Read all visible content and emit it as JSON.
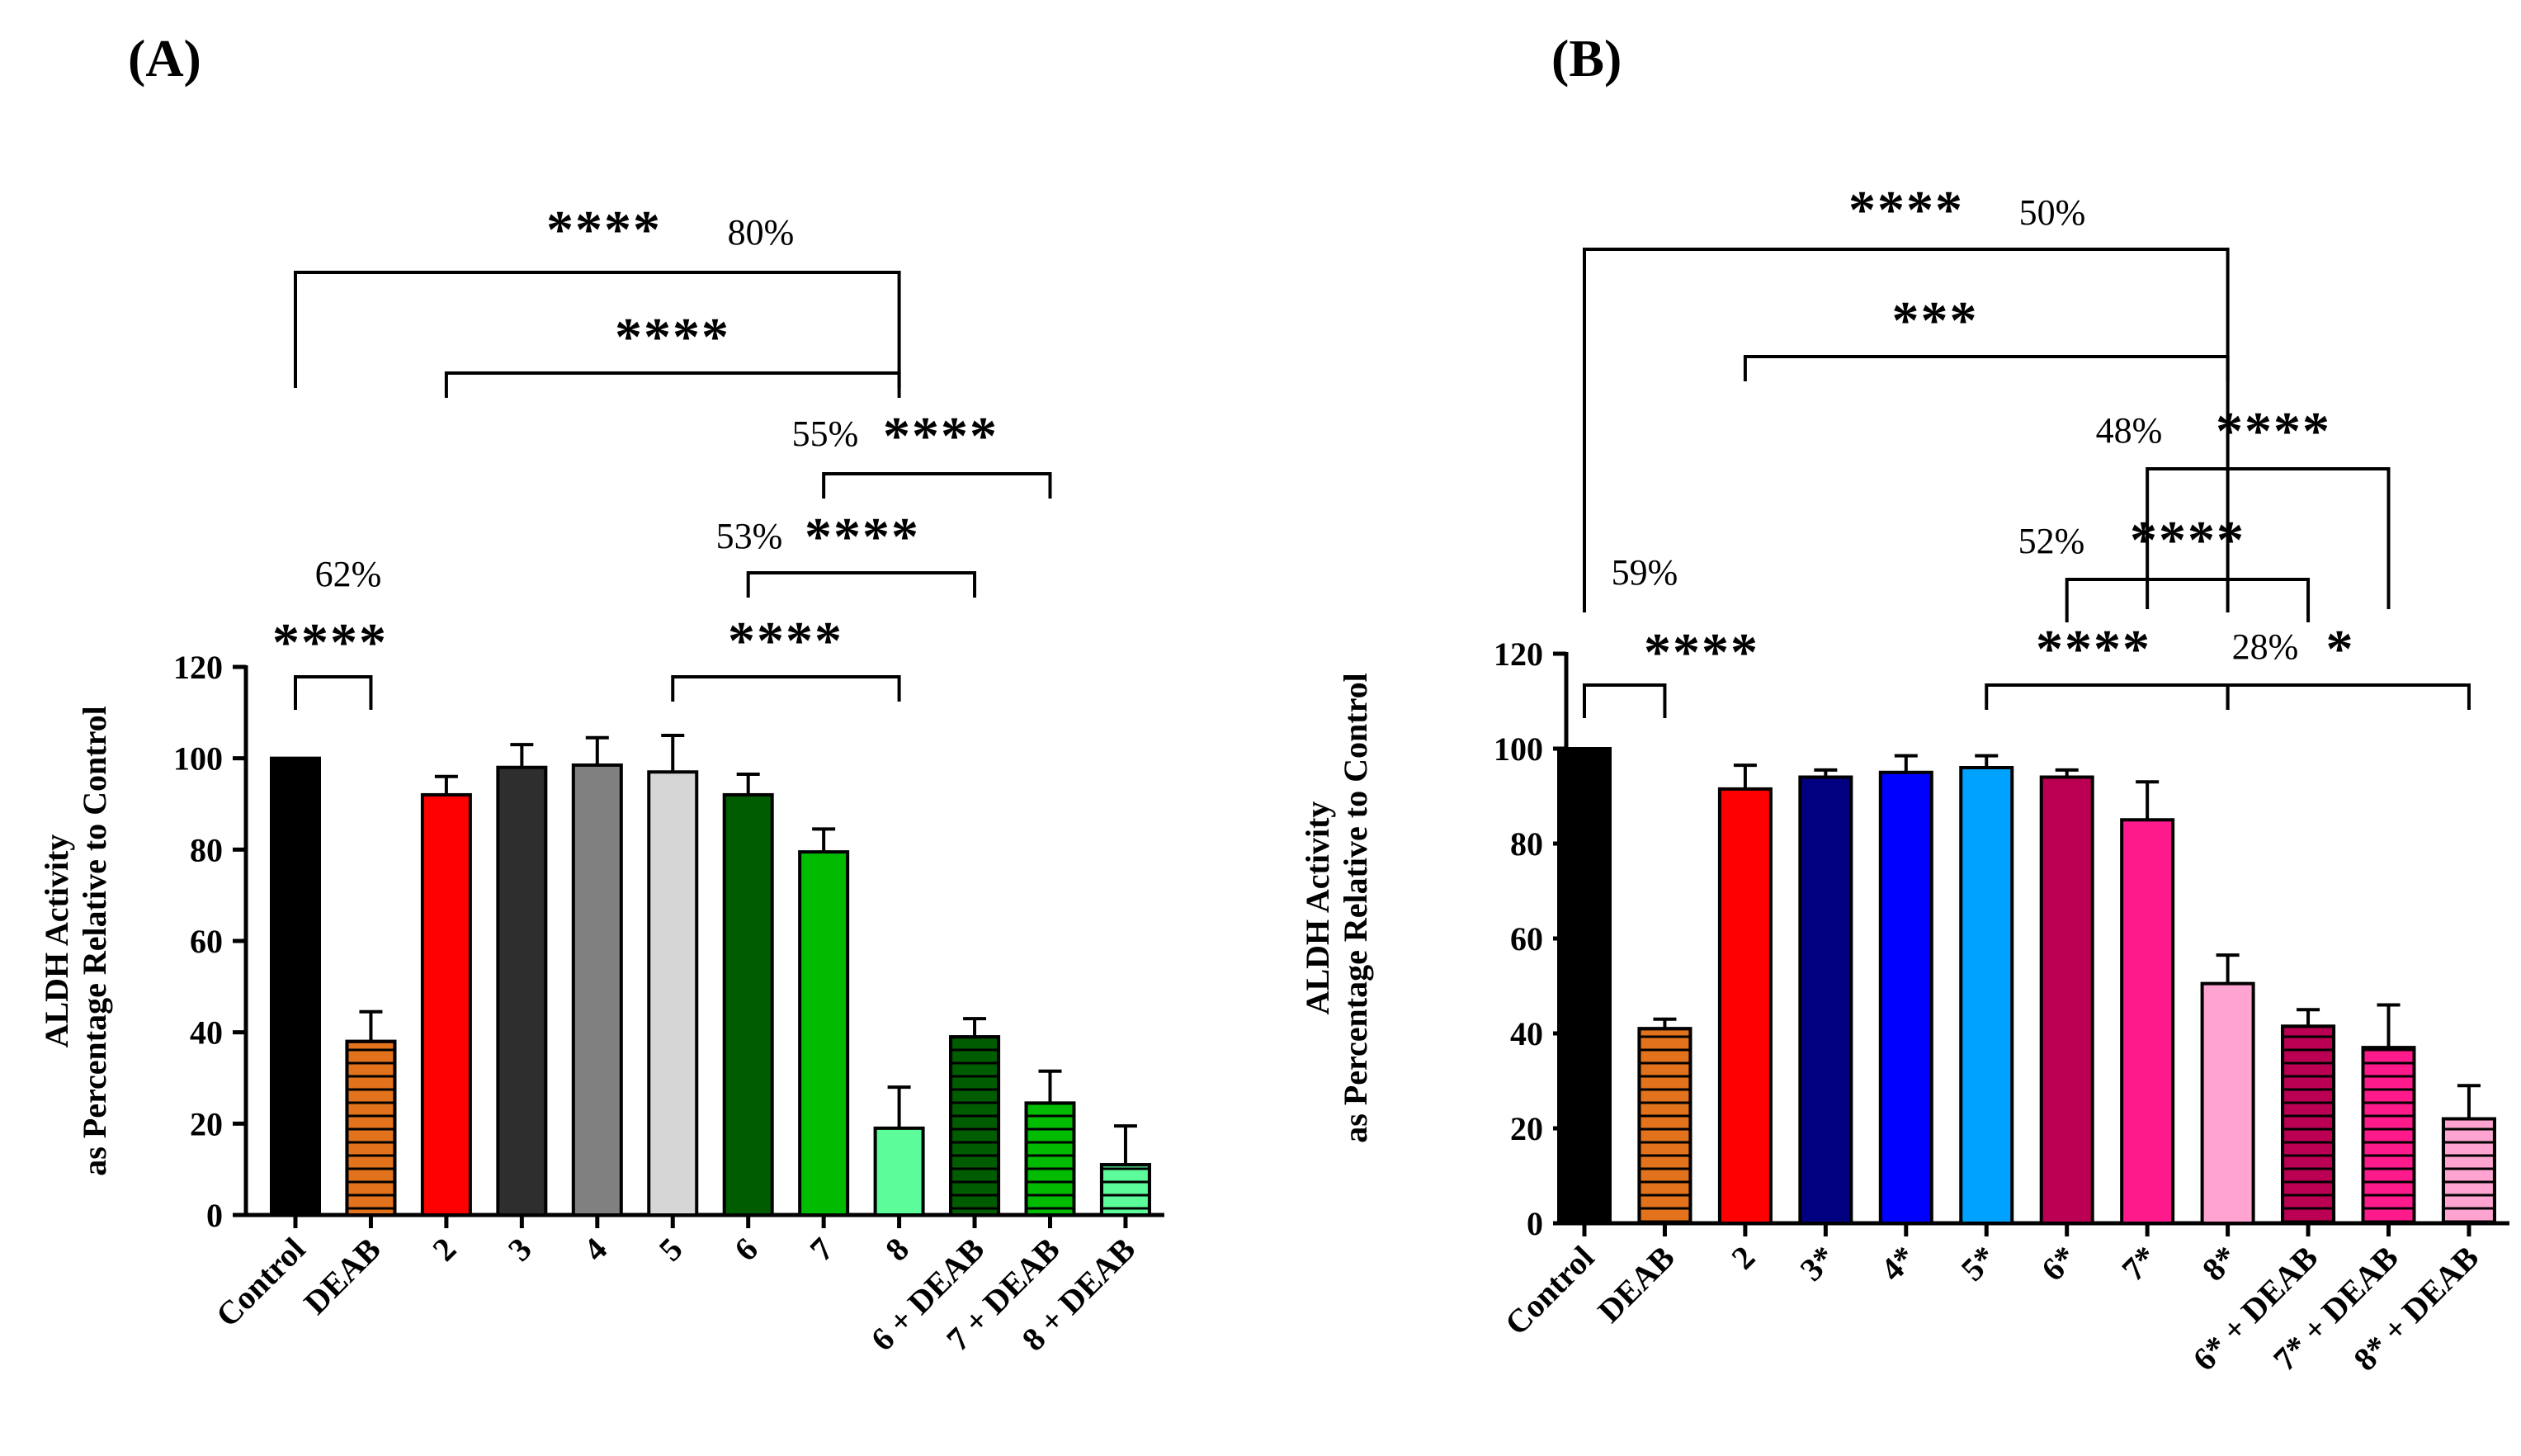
{
  "figure": {
    "panel_a_label": "(A)",
    "panel_b_label": "(B)"
  },
  "chart_data": [
    {
      "type": "bar",
      "panel": "(A)",
      "title": "",
      "xlabel": "",
      "ylabel_line1": "ALDH Activity",
      "ylabel_line2": "as Percentage Relative to Control",
      "ylim": [
        0,
        120
      ],
      "yticks": [
        "0",
        "20",
        "40",
        "60",
        "80",
        "100",
        "120"
      ],
      "categories": [
        "Control",
        "DEAB",
        "2",
        "3",
        "4",
        "5",
        "6",
        "7",
        "8",
        "6 + DEAB",
        "7 + DEAB",
        "8 + DEAB"
      ],
      "values": [
        100,
        38,
        92,
        98,
        98.5,
        97,
        92,
        79.5,
        19,
        39,
        24.5,
        11
      ],
      "errors": [
        0,
        6.5,
        4,
        5,
        6,
        8,
        4.5,
        5,
        9,
        4,
        7,
        8.5
      ],
      "colors": [
        "#000000",
        "#e2721b",
        "#ff0000",
        "#2e2e2e",
        "#808080",
        "#d6d6d6",
        "#005c00",
        "#00bb00",
        "#5cfc9a",
        "#005c00",
        "#00bb00",
        "#5cfc9a"
      ],
      "hatched": [
        false,
        true,
        false,
        false,
        false,
        false,
        false,
        false,
        false,
        true,
        true,
        true
      ],
      "comparisons": [
        {
          "from": "Control",
          "to": "8",
          "stars": "****",
          "percent": "80%"
        },
        {
          "from": "2",
          "to": "8",
          "stars": "****",
          "percent": ""
        },
        {
          "from": "7",
          "to": "7 + DEAB",
          "stars": "****",
          "percent": "55%"
        },
        {
          "from": "6",
          "to": "6 + DEAB",
          "stars": "****",
          "percent": "53%"
        },
        {
          "from": "5",
          "to": "8",
          "stars": "****",
          "percent": ""
        },
        {
          "from": "Control",
          "to": "DEAB",
          "stars": "****",
          "percent": "62%"
        }
      ]
    },
    {
      "type": "bar",
      "panel": "(B)",
      "title": "",
      "xlabel": "",
      "ylabel_line1": "ALDH Activity",
      "ylabel_line2": "as Percentage Relative to Control",
      "ylim": [
        0,
        120
      ],
      "yticks": [
        "0",
        "20",
        "40",
        "60",
        "80",
        "100",
        "120"
      ],
      "categories": [
        "Control",
        "DEAB",
        "2",
        "3*",
        "4*",
        "5*",
        "6*",
        "7*",
        "8*",
        "6* + DEAB",
        "7* + DEAB",
        "8* + DEAB"
      ],
      "values": [
        100,
        41,
        91.5,
        94,
        95,
        96,
        94,
        85,
        50.5,
        41.5,
        37,
        22
      ],
      "errors": [
        0,
        2,
        5,
        1.5,
        3.5,
        2.5,
        1.5,
        8,
        6,
        3.5,
        9,
        7
      ],
      "colors": [
        "#000000",
        "#e2721b",
        "#ff0000",
        "#000080",
        "#0000ff",
        "#00a2ff",
        "#bb0054",
        "#ff1a8c",
        "#ffa3d1",
        "#bb0054",
        "#ff1a8c",
        "#ffa3d1"
      ],
      "hatched": [
        false,
        true,
        false,
        false,
        false,
        false,
        false,
        false,
        false,
        true,
        true,
        true
      ],
      "comparisons": [
        {
          "from": "Control",
          "to": "8*",
          "stars": "****",
          "percent": "50%"
        },
        {
          "from": "2",
          "to": "8*",
          "stars": "***",
          "percent": ""
        },
        {
          "from": "7*",
          "to": "7* + DEAB",
          "stars": "****",
          "percent": "48%"
        },
        {
          "from": "6*",
          "to": "6* + DEAB",
          "stars": "****",
          "percent": "52%"
        },
        {
          "from": "5*",
          "to": "8*",
          "stars": "****",
          "percent": ""
        },
        {
          "from": "8*",
          "to": "8* + DEAB",
          "stars": "*",
          "percent": "28%"
        },
        {
          "from": "Control",
          "to": "DEAB",
          "stars": "****",
          "percent": "59%"
        }
      ]
    }
  ]
}
